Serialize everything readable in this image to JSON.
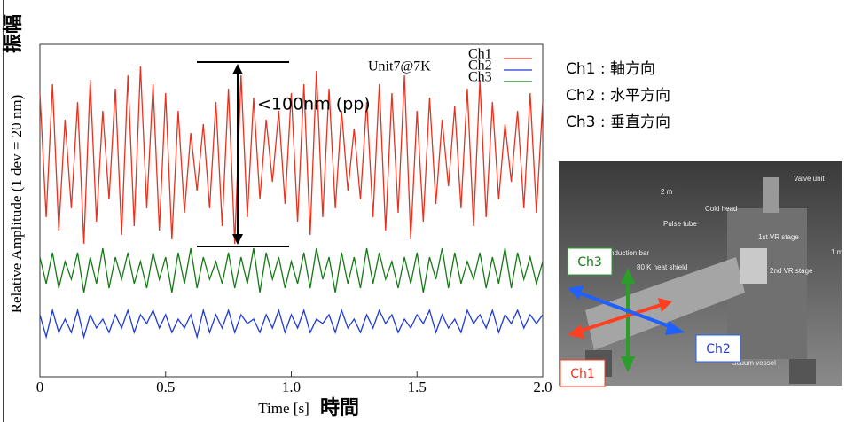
{
  "chart_data": {
    "type": "line",
    "y_label": "Relative Amplitude (1 dev = 20 nm)",
    "y_label_jp": "振幅",
    "x_label": "Time [s]",
    "x_label_jp": "時間",
    "annotation": "<100nm (pp)",
    "inset_label": "Unit7@7K",
    "xlim": [
      0,
      2
    ],
    "xticks": [
      0,
      0.5,
      {
        "value": 1,
        "label": "1.0"
      },
      1.5,
      {
        "value": 2,
        "label": "2.0"
      }
    ],
    "ylim": [
      0,
      75
    ],
    "x": [
      0,
      0.025,
      0.05,
      0.075,
      0.1,
      0.125,
      0.15,
      0.175,
      0.2,
      0.225,
      0.25,
      0.275,
      0.3,
      0.325,
      0.35,
      0.375,
      0.4,
      0.425,
      0.45,
      0.475,
      0.5,
      0.525,
      0.55,
      0.575,
      0.6,
      0.625,
      0.65,
      0.675,
      0.7,
      0.725,
      0.75,
      0.775,
      0.8,
      0.825,
      0.85,
      0.875,
      0.9,
      0.925,
      0.95,
      0.975,
      1,
      1.025,
      1.05,
      1.075,
      1.1,
      1.125,
      1.15,
      1.175,
      1.2,
      1.225,
      1.25,
      1.275,
      1.3,
      1.325,
      1.35,
      1.375,
      1.4,
      1.425,
      1.45,
      1.475,
      1.5,
      1.525,
      1.55,
      1.575,
      1.6,
      1.625,
      1.65,
      1.675,
      1.7,
      1.725,
      1.75,
      1.775,
      1.8,
      1.825,
      1.85,
      1.875,
      1.9,
      1.925,
      1.95,
      1.975,
      2
    ],
    "series": [
      {
        "name": "Ch1",
        "color": "#e8321e",
        "values": [
          64,
          36,
          66,
          33,
          58,
          38,
          62,
          30,
          67,
          35,
          60,
          40,
          65,
          32,
          68,
          34,
          70,
          38,
          66,
          33,
          64,
          31,
          60,
          37,
          55,
          42,
          57,
          38,
          62,
          34,
          65,
          30,
          68,
          36,
          63,
          40,
          58,
          44,
          60,
          39,
          64,
          35,
          66,
          32,
          69,
          36,
          65,
          38,
          60,
          42,
          56,
          40,
          62,
          36,
          66,
          33,
          64,
          37,
          68,
          31,
          60,
          35,
          63,
          39,
          58,
          43,
          61,
          38,
          65,
          34,
          67,
          36,
          62,
          40,
          57,
          44,
          60,
          38,
          64,
          37,
          62
        ]
      },
      {
        "name": "Ch2",
        "color": "#1f3ad6",
        "values": [
          14,
          9,
          15,
          10,
          13,
          10,
          15,
          9,
          14,
          11,
          13,
          10,
          14,
          11,
          15,
          10,
          14,
          12,
          15,
          11,
          14,
          10,
          13,
          11,
          14,
          9,
          15,
          10,
          14,
          11,
          15,
          10,
          14,
          12,
          13,
          10,
          14,
          11,
          15,
          10,
          14,
          11,
          15,
          10,
          13,
          12,
          14,
          10,
          15,
          11,
          13,
          10,
          14,
          11,
          15,
          12,
          14,
          10,
          13,
          11,
          14,
          12,
          15,
          10,
          14,
          11,
          13,
          10,
          15,
          12,
          14,
          11,
          15,
          10,
          14,
          12,
          15,
          11,
          14,
          12,
          14
        ]
      },
      {
        "name": "Ch3",
        "color": "#137a13",
        "values": [
          27,
          21,
          28,
          20,
          26,
          22,
          28,
          19,
          27,
          21,
          29,
          20,
          27,
          22,
          28,
          21,
          26,
          20,
          28,
          22,
          27,
          19,
          28,
          21,
          29,
          20,
          27,
          22,
          26,
          21,
          28,
          20,
          27,
          21,
          29,
          19,
          28,
          22,
          27,
          20,
          26,
          21,
          28,
          20,
          29,
          22,
          27,
          19,
          28,
          21,
          27,
          20,
          29,
          21,
          28,
          22,
          26,
          20,
          27,
          21,
          28,
          19,
          27,
          22,
          29,
          20,
          28,
          21,
          26,
          22,
          28,
          20,
          27,
          21,
          29,
          20,
          28,
          22,
          27,
          21,
          26
        ]
      }
    ]
  },
  "side": {
    "lines": [
      "Ch1 : 軸方向",
      "Ch2 : 水平方向",
      "Ch3 : 垂直方向"
    ]
  },
  "diagram": {
    "labels": [
      "2 m",
      "1 m",
      "Valve unit",
      "Cold head",
      "Pulse tube",
      "1st VR stage",
      "2nd VR stage",
      "nduction bar",
      "80 K heat shield",
      "acuum vessel"
    ],
    "ch3": "Ch3",
    "ch2": "Ch2",
    "ch1": "Ch1"
  }
}
